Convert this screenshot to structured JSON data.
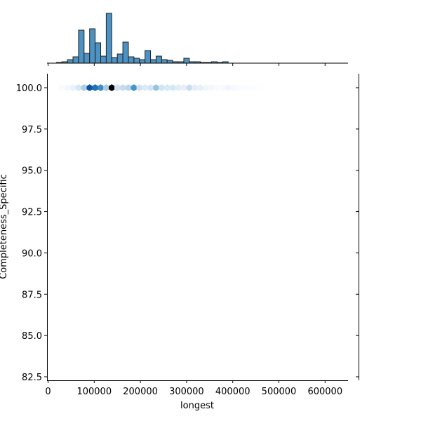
{
  "chart_data": {
    "type": "hexbin_jointplot",
    "title": "",
    "xlabel": "longest",
    "ylabel": "Completeness_Specific",
    "xlim": [
      -2000,
      655000
    ],
    "ylim": [
      82.2,
      100.8
    ],
    "x_ticks": [
      "0",
      "100000",
      "200000",
      "300000",
      "400000",
      "500000",
      "600000"
    ],
    "y_ticks": [
      "82.5",
      "85.0",
      "87.5",
      "90.0",
      "92.5",
      "95.0",
      "97.5",
      "100.0"
    ],
    "grid": false,
    "legend": null,
    "bar_color": "#4c92c3",
    "edge_color": "#222222",
    "marginal_x_histogram": {
      "bin_width": 12000,
      "bin_starts": [
        18000,
        30000,
        42000,
        54000,
        66000,
        78000,
        90000,
        102000,
        114000,
        126000,
        138000,
        150000,
        162000,
        174000,
        186000,
        198000,
        210000,
        222000,
        234000,
        246000,
        258000,
        270000,
        282000,
        294000,
        306000,
        318000,
        330000,
        342000,
        354000,
        366000,
        378000
      ],
      "counts": [
        1,
        2,
        5,
        9,
        47,
        14,
        49,
        29,
        10,
        71,
        8,
        13,
        30,
        9,
        7,
        5,
        18,
        5,
        10,
        5,
        4,
        2,
        2,
        7,
        2,
        2,
        1,
        1,
        2,
        1,
        2
      ]
    },
    "hexbins": {
      "y_value": 100.0,
      "x_centers": [
        30000,
        42000,
        54000,
        66000,
        78000,
        90000,
        102000,
        114000,
        126000,
        138000,
        150000,
        162000,
        174000,
        186000,
        198000,
        210000,
        222000,
        234000,
        246000,
        258000,
        270000,
        282000,
        294000,
        306000,
        318000,
        330000,
        342000,
        354000,
        366000,
        378000,
        390000,
        402000,
        414000,
        426000,
        438000,
        450000,
        462000
      ],
      "colors": [
        "#f7fbff",
        "#f2f8fd",
        "#eaf3fb",
        "#d6e6f4",
        "#abd0e6",
        "#0b559f",
        "#2171b5",
        "#3d8dc4",
        "#a6cde4",
        "#000000",
        "#d0e1f2",
        "#c6dbef",
        "#bad6eb",
        "#4695c8",
        "#cfe1f2",
        "#dce9f6",
        "#d4e4f4",
        "#94c4df",
        "#d2e3f3",
        "#dae8f5",
        "#d7e6f5",
        "#e0ecf8",
        "#e5eff9",
        "#c9ddf0",
        "#e3eef9",
        "#e8f1fa",
        "#eff6fc",
        "#f3f8fe",
        "#f7fbff",
        "#f7fbff",
        "#f0f6fd",
        "#f5f9fe",
        "#f7fbff",
        "#fafcff",
        "#fbfdff",
        "#fcfdff",
        "#fdfeff"
      ]
    }
  }
}
